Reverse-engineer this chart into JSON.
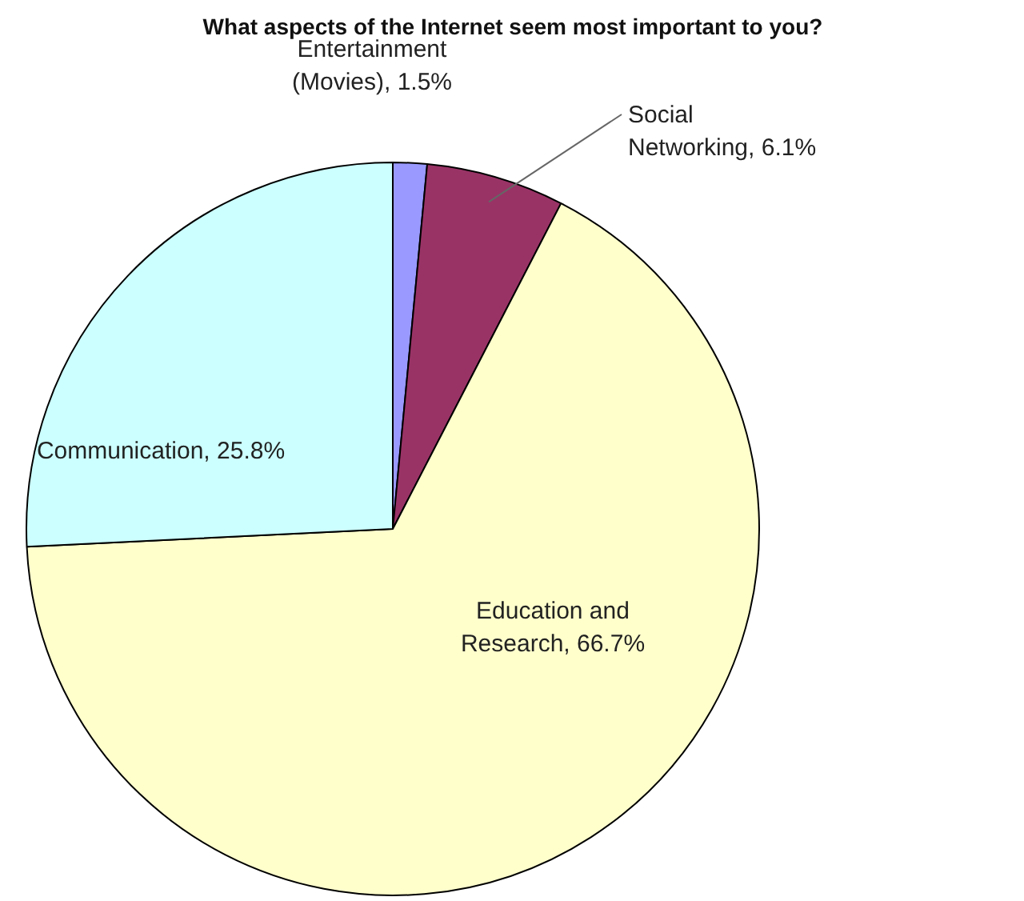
{
  "chart_data": {
    "type": "pie",
    "title": "What aspects of the Internet seem most important to you?",
    "categories": [
      "Entertainment (Movies)",
      "Social Networking",
      "Education and Research",
      "Communication"
    ],
    "values": [
      1.5,
      6.1,
      66.7,
      25.8
    ],
    "value_labels": [
      "1.5%",
      "6.1%",
      "66.7%",
      "25.8%"
    ],
    "colors": [
      "#9999ff",
      "#993366",
      "#ffffcc",
      "#ccffff"
    ]
  }
}
